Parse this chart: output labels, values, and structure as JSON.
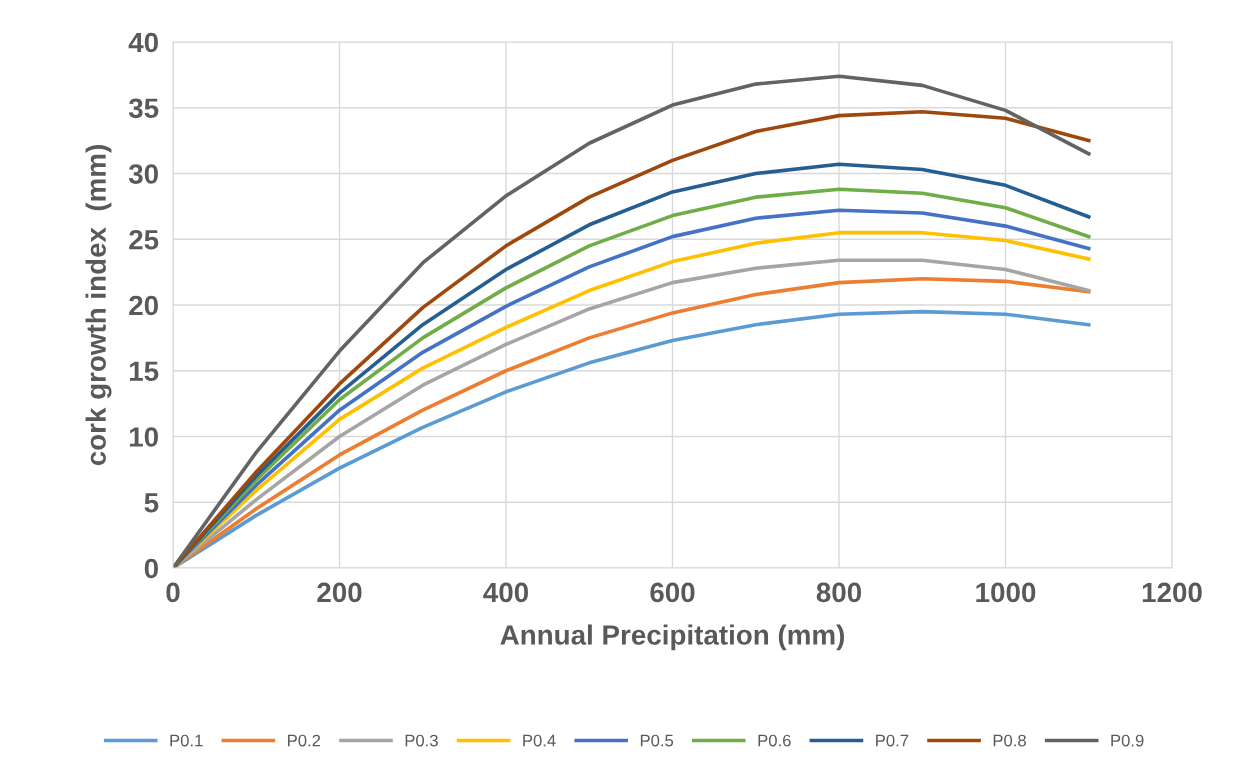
{
  "chart_data": {
    "type": "line",
    "xlabel": "Annual Precipitation (mm)",
    "ylabel": "cork growth index  (mm)",
    "x": [
      0,
      100,
      200,
      300,
      400,
      500,
      600,
      700,
      800,
      900,
      1000,
      1100
    ],
    "xlim": [
      0,
      1200
    ],
    "xticks": [
      0,
      200,
      400,
      600,
      800,
      1000,
      1200
    ],
    "ylim": [
      0,
      40
    ],
    "yticks": [
      0,
      5,
      10,
      15,
      20,
      25,
      30,
      35,
      40
    ],
    "grid": true,
    "legend": "bottom",
    "marker": "none",
    "line_style": "solid",
    "series": [
      {
        "name": "P0.1",
        "color": "#5b9bd5",
        "values": [
          0,
          4,
          7.6,
          10.7,
          13.4,
          15.6,
          17.3,
          18.5,
          19.3,
          19.5,
          19.3,
          18.5
        ]
      },
      {
        "name": "P0.2",
        "color": "#ed7d31",
        "values": [
          0,
          4.5,
          8.6,
          12,
          15,
          17.5,
          19.4,
          20.8,
          21.7,
          22,
          21.8,
          21
        ]
      },
      {
        "name": "P0.3",
        "color": "#a5a5a5",
        "values": [
          0,
          5.2,
          10,
          13.9,
          17,
          19.7,
          21.7,
          22.8,
          23.4,
          23.4,
          22.7,
          21.1
        ]
      },
      {
        "name": "P0.4",
        "color": "#ffc000",
        "values": [
          0,
          5.9,
          11.3,
          15.2,
          18.3,
          21.1,
          23.3,
          24.7,
          25.5,
          25.5,
          24.9,
          23.5
        ]
      },
      {
        "name": "P0.5",
        "color": "#4472c4",
        "values": [
          0,
          6.3,
          12,
          16.4,
          19.9,
          22.9,
          25.2,
          26.6,
          27.2,
          27,
          26,
          24.3
        ]
      },
      {
        "name": "P0.6",
        "color": "#70ad47",
        "values": [
          0,
          6.7,
          12.8,
          17.5,
          21.3,
          24.5,
          26.8,
          28.2,
          28.8,
          28.5,
          27.4,
          25.2
        ]
      },
      {
        "name": "P0.7",
        "color": "#255e91",
        "values": [
          0,
          7,
          13.3,
          18.5,
          22.7,
          26.1,
          28.6,
          30,
          30.7,
          30.3,
          29.1,
          26.7
        ]
      },
      {
        "name": "P0.8",
        "color": "#9e480e",
        "values": [
          0,
          7.3,
          14,
          19.8,
          24.5,
          28.2,
          31,
          33.2,
          34.4,
          34.7,
          34.2,
          32.5
        ]
      },
      {
        "name": "P0.9",
        "color": "#636363",
        "values": [
          0,
          8.8,
          16.5,
          23.2,
          28.3,
          32.3,
          35.2,
          36.8,
          37.4,
          36.7,
          34.8,
          31.5
        ]
      }
    ]
  }
}
